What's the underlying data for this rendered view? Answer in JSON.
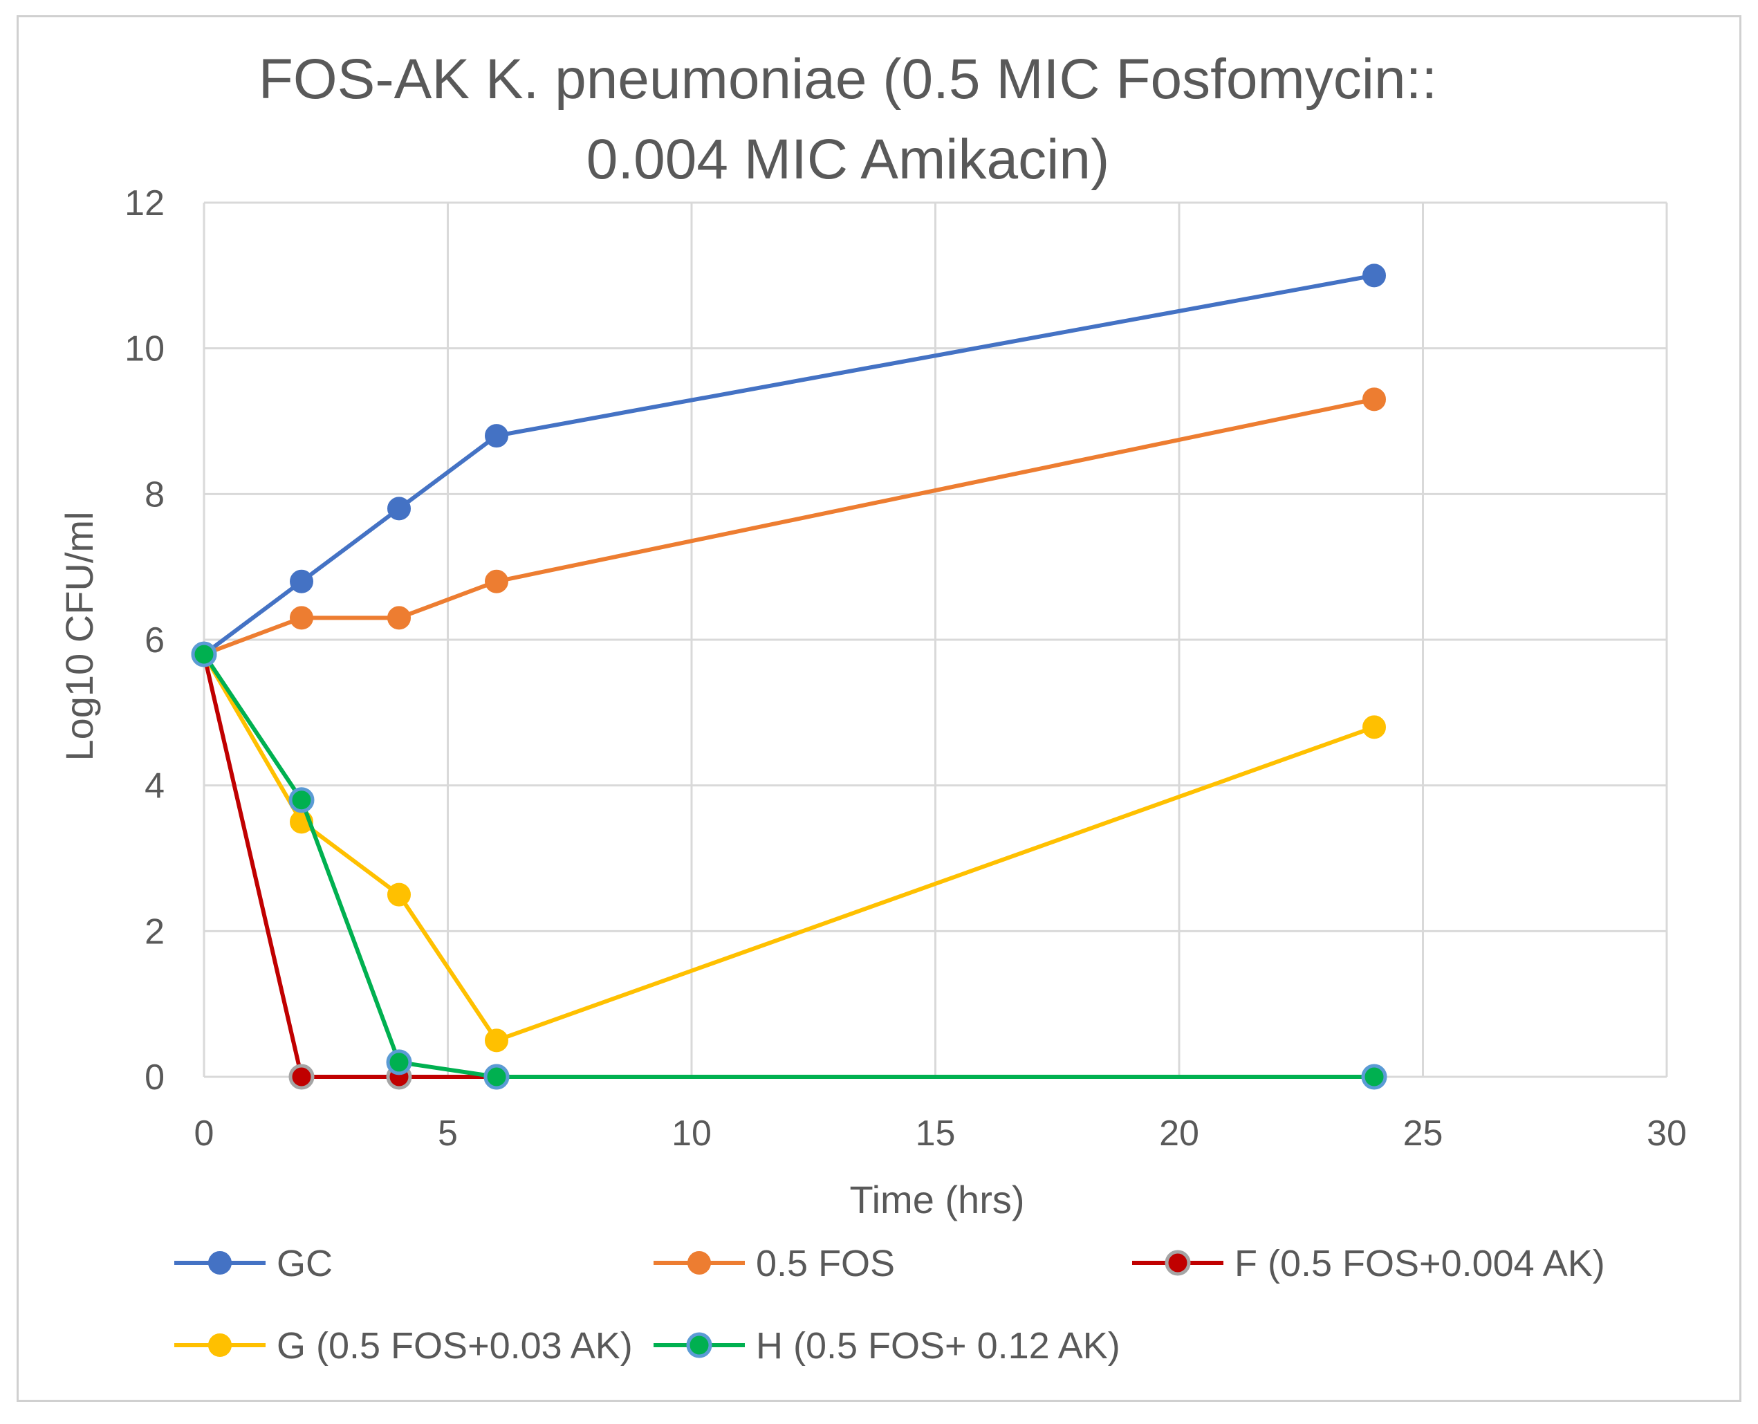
{
  "chart_data": {
    "type": "line",
    "title_lines": [
      "FOS-AK K. pneumoniae (0.5 MIC Fosfomycin::",
      "0.004 MIC Amikacin)"
    ],
    "xlabel": "Time (hrs)",
    "ylabel": "Log10 CFU/ml",
    "xlim": [
      0,
      30
    ],
    "ylim": [
      0,
      12
    ],
    "xticks": [
      0,
      5,
      10,
      15,
      20,
      25,
      30
    ],
    "yticks": [
      0,
      2,
      4,
      6,
      8,
      10,
      12
    ],
    "grid": true,
    "legend_position": "bottom",
    "x": [
      0,
      2,
      4,
      6,
      24
    ],
    "series": [
      {
        "name": "GC",
        "color": "#4472C4",
        "marker_edge": "#4472C4",
        "values": [
          5.8,
          6.8,
          7.8,
          8.8,
          11.0
        ]
      },
      {
        "name": "0.5 FOS",
        "color": "#ED7D31",
        "marker_edge": "#ED7D31",
        "values": [
          5.8,
          6.3,
          6.3,
          6.8,
          9.3
        ]
      },
      {
        "name": "F (0.5 FOS+0.004 AK)",
        "color": "#C00000",
        "marker_edge": "#A5A5A5",
        "values": [
          5.8,
          0,
          0,
          0,
          null
        ]
      },
      {
        "name": "G (0.5 FOS+0.03 AK)",
        "color": "#FFC000",
        "marker_edge": "#FFC000",
        "values": [
          5.8,
          3.5,
          2.5,
          0.5,
          4.8
        ]
      },
      {
        "name": "H (0.5 FOS+ 0.12 AK)",
        "color": "#00B050",
        "marker_edge": "#5B9BD5",
        "values": [
          5.8,
          3.8,
          0.2,
          0,
          0
        ]
      }
    ]
  }
}
